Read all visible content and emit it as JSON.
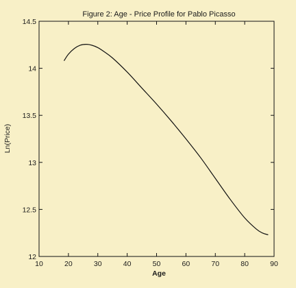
{
  "chart_data": {
    "type": "line",
    "title": "Figure 2: Age - Price Profile for Pablo Picasso",
    "xlabel": "Age",
    "ylabel": "Ln(Price)",
    "xlim": [
      10,
      90
    ],
    "ylim": [
      12,
      14.5
    ],
    "xticks": [
      "10",
      "20",
      "30",
      "40",
      "50",
      "60",
      "70",
      "80",
      "90"
    ],
    "yticks": [
      "12",
      "12.5",
      "13",
      "13.5",
      "14",
      "14.5"
    ],
    "grid": false,
    "series": [
      {
        "name": "",
        "color": "#111111",
        "x": [
          18.5,
          20,
          22,
          24,
          26,
          28,
          30,
          32,
          35,
          40,
          45,
          50,
          55,
          60,
          65,
          70,
          75,
          80,
          84,
          86,
          88
        ],
        "y": [
          14.08,
          14.15,
          14.21,
          14.245,
          14.255,
          14.245,
          14.22,
          14.18,
          14.11,
          13.96,
          13.79,
          13.62,
          13.44,
          13.25,
          13.05,
          12.83,
          12.61,
          12.41,
          12.29,
          12.25,
          12.23
        ]
      }
    ]
  }
}
